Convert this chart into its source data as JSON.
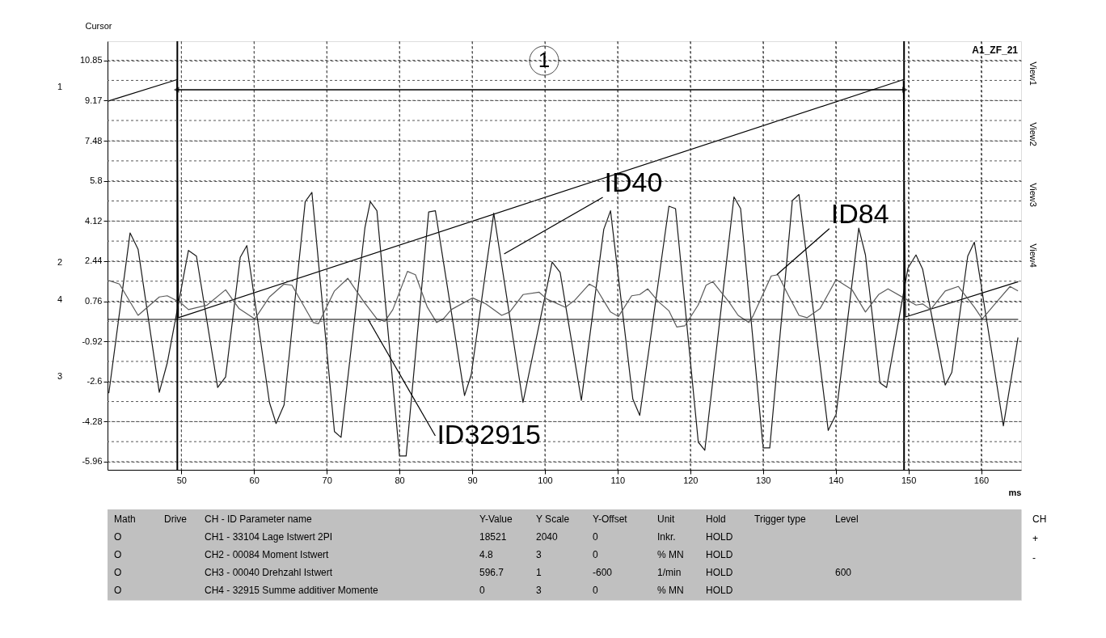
{
  "chart_data": {
    "type": "line",
    "ylabel": "Cursor",
    "xlabel": "ms",
    "xlim": [
      39.85,
      165.5
    ],
    "ylim": [
      -6.3,
      11.65
    ],
    "xticks": [
      50,
      60,
      70,
      80,
      90,
      100,
      110,
      120,
      130,
      140,
      150,
      160
    ],
    "yticks": [
      10.85,
      {
        "value": 10.01,
        "label": null
      },
      9.17,
      {
        "value": 8.33,
        "label": null
      },
      7.48,
      {
        "value": 6.64,
        "label": null
      },
      5.8,
      {
        "value": 4.96,
        "label": null
      },
      4.12,
      {
        "value": 3.28,
        "label": null
      },
      2.44,
      {
        "value": 1.6,
        "label": null
      },
      0.76,
      {
        "value": -0.08,
        "label": null
      },
      -0.92,
      {
        "value": -1.76,
        "label": null
      },
      -2.6,
      {
        "value": -3.44,
        "label": null
      },
      -4.28,
      {
        "value": -5.12,
        "label": null
      },
      -5.96
    ],
    "grid": true,
    "legend": false,
    "marker": "none",
    "line_style": "solid",
    "series": [
      {
        "color": "#000000",
        "x": [
          39.9,
          49.4,
          49.6,
          149.3,
          149.6,
          165.1
        ],
        "values": [
          9.14,
          10.04,
          0.07,
          10.04,
          0.1,
          1.58
        ]
      },
      {
        "color": "#1a1a1a",
        "x": [
          40.03,
          42.95,
          44.05,
          46.97,
          48.06,
          50.98,
          52.08,
          55.0,
          56.09,
          58.1,
          59.01,
          62.12,
          63.03,
          64.13,
          67.04,
          67.96,
          71.06,
          71.97,
          75.26,
          75.99,
          76.9,
          80.01,
          80.92,
          84.02,
          84.94,
          88.95,
          89.87,
          92.97,
          96.99,
          101.0,
          102.1,
          105.02,
          108.1,
          109.03,
          112.1,
          113.05,
          117.06,
          117.97,
          121.1,
          122.0,
          126.01,
          126.92,
          130.02,
          130.93,
          134.04,
          134.95,
          138.97,
          140.06,
          143.17,
          144.09,
          146.09,
          147.0,
          149.95,
          151.04,
          151.95,
          155.06,
          155.97,
          158.16,
          159.07,
          163.06,
          165.07
        ],
        "values": [
          -3.09,
          3.62,
          2.94,
          -3.05,
          -1.83,
          2.89,
          2.65,
          -2.85,
          -2.41,
          2.6,
          3.09,
          -3.48,
          -4.36,
          -3.58,
          4.93,
          5.32,
          -4.7,
          -4.94,
          3.86,
          4.93,
          4.55,
          -5.72,
          -5.72,
          4.5,
          4.55,
          -3.19,
          -2.32,
          4.45,
          -3.48,
          2.4,
          1.97,
          -3.39,
          3.77,
          4.55,
          -3.34,
          -4.02,
          4.74,
          4.64,
          -5.14,
          -5.48,
          5.13,
          4.64,
          -5.38,
          -5.38,
          4.98,
          5.23,
          -4.65,
          -3.97,
          3.82,
          2.7,
          -2.66,
          -2.85,
          2.16,
          2.7,
          2.11,
          -2.75,
          -2.22,
          2.65,
          3.23,
          -4.46,
          -0.76
        ]
      },
      {
        "color": "#5a5a5a",
        "x": [
          40.03,
          41.49,
          44.05,
          46.97,
          48.06,
          49.89,
          50.98,
          53.54,
          56.09,
          57.92,
          60.11,
          62.12,
          64.13,
          65.22,
          68.14,
          68.87,
          71.06,
          72.89,
          75.08,
          76.9,
          78.0,
          79.09,
          81.1,
          82.2,
          83.84,
          85.12,
          86.04,
          87.13,
          90.04,
          91.87,
          94.06,
          95.16,
          97.0,
          99.19,
          100.28,
          102.83,
          104.1,
          106.1,
          107.01,
          109.03,
          110.12,
          111.94,
          113.04,
          114.14,
          115.6,
          117.06,
          118.15,
          119.25,
          121.08,
          122.17,
          123.09,
          125.28,
          126.58,
          128.04,
          128.59,
          131.14,
          132.06,
          133.52,
          134.95,
          136.05,
          137.87,
          140.06,
          142.25,
          144.09,
          145.9,
          147.19,
          149.95,
          151.04,
          151.95,
          153.05,
          155.06,
          156.86,
          159.07,
          160.16,
          162.33,
          163.98,
          165.07
        ],
        "values": [
          1.63,
          1.48,
          0.17,
          0.94,
          0.99,
          0.7,
          0.41,
          0.6,
          1.24,
          0.46,
          0.02,
          0.94,
          1.48,
          1.43,
          -0.13,
          -0.18,
          1.19,
          1.72,
          0.75,
          0.02,
          -0.08,
          0.41,
          2.01,
          1.87,
          0.51,
          -0.13,
          0.02,
          0.41,
          0.9,
          0.65,
          0.17,
          0.31,
          1.04,
          1.14,
          0.85,
          0.51,
          0.8,
          1.48,
          1.33,
          0.31,
          0.12,
          0.99,
          1.04,
          1.28,
          0.75,
          0.36,
          -0.32,
          -0.27,
          0.6,
          1.43,
          1.58,
          0.75,
          0.17,
          -0.13,
          0.12,
          1.82,
          1.87,
          0.99,
          0.17,
          0.07,
          0.46,
          1.67,
          1.24,
          0.31,
          1.04,
          1.28,
          0.8,
          0.6,
          0.65,
          0.41,
          1.19,
          1.38,
          0.51,
          0.02,
          0.8,
          1.38,
          1.19
        ]
      },
      {
        "color": "#000000",
        "x": [
          39.85,
          165.1
        ],
        "values": [
          0,
          0
        ]
      }
    ],
    "ref_lines": [
      {
        "axis": "x",
        "value": 49.45,
        "color": "#000000"
      },
      {
        "axis": "x",
        "value": 149.4,
        "color": "#000000"
      }
    ],
    "annotations": [
      "1",
      "1",
      "2",
      "4",
      "3",
      {
        "text": "ID40",
        "x": 94.4,
        "y": 2.74
      },
      {
        "text": "ID84",
        "x": 131.9,
        "y": 1.87
      },
      {
        "text": "ID32915",
        "x": 75.7,
        "y": 0
      },
      "Math",
      "Drive",
      "CH - ID Parameter name",
      "Y-Value",
      "Y Scale",
      "Y-Offset",
      "Unit",
      "Hold",
      "Trigger type",
      "Level",
      "O",
      "CH1 - 33104   Lage Istwert 2PI",
      "18521",
      "2040",
      "0",
      "Inkr.",
      "HOLD",
      "O",
      "CH2 - 00084   Moment Istwert",
      "4.8",
      "3",
      "0",
      "% MN",
      "HOLD",
      "O",
      "CH3 - 00040   Drehzahl Istwert",
      "596.7",
      "1",
      "-600",
      "1/min",
      "HOLD",
      "600",
      "O",
      "CH4 - 32915   Summe additiver Momente",
      "0",
      "3",
      "0",
      "% MN",
      "HOLD",
      "A1_ZF_21",
      "View1",
      "View2",
      "View3",
      "View4",
      "CH",
      "+",
      "-"
    ]
  }
}
